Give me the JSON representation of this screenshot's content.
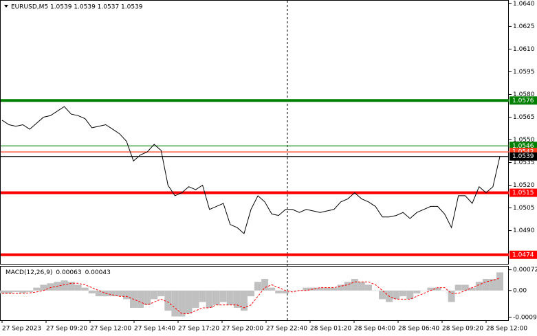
{
  "chart_data": [
    {
      "type": "line",
      "title": "EURUSD,M5  1.0539 1.0539 1.0537 1.0539",
      "color": "#000000",
      "values": [
        1.0563,
        1.056,
        1.0559,
        1.056,
        1.0557,
        1.0561,
        1.0565,
        1.0566,
        1.0569,
        1.0572,
        1.0567,
        1.0566,
        1.0564,
        1.0558,
        1.0559,
        1.056,
        1.0557,
        1.0554,
        1.0549,
        1.0536,
        1.054,
        1.0542,
        1.0547,
        1.0543,
        1.052,
        1.0513,
        1.0515,
        1.0519,
        1.0517,
        1.052,
        1.0504,
        1.0506,
        1.0508,
        1.0494,
        1.0492,
        1.0488,
        1.0504,
        1.0513,
        1.0509,
        1.0501,
        1.05,
        1.0504,
        1.0504,
        1.0502,
        1.0504,
        1.0503,
        1.0502,
        1.0503,
        1.0504,
        1.0509,
        1.0511,
        1.0515,
        1.0511,
        1.0509,
        1.0506,
        1.0499,
        1.0499,
        1.05,
        1.0502,
        1.0498,
        1.0502,
        1.0504,
        1.0506,
        1.0506,
        1.0501,
        1.0492,
        1.0513,
        1.0513,
        1.0508,
        1.0519,
        1.0515,
        1.0519,
        1.0539
      ],
      "ylim": [
        1.0468,
        1.0642
      ],
      "yticks": [
        {
          "value": 1.064,
          "label": "1.0640"
        },
        1.0625,
        {
          "value": 1.061,
          "label": "1.0610"
        },
        1.0595,
        {
          "value": 1.058,
          "label": "1.0580"
        },
        1.0565,
        {
          "value": 1.055,
          "label": "1.0550"
        },
        1.0535,
        {
          "value": 1.052,
          "label": "1.0520"
        },
        1.0505,
        {
          "value": 1.049,
          "label": "1.0490"
        }
      ],
      "levels": [
        {
          "value": 1.0576,
          "color": "#008000",
          "weight": "bold"
        },
        {
          "value": 1.0546,
          "color": "#008000",
          "weight": "thin"
        },
        {
          "value": 1.0542,
          "color": "#ff3c1e",
          "weight": "thin"
        },
        {
          "value": 1.0539,
          "color": "#000000",
          "weight": "thin"
        },
        {
          "value": 1.0515,
          "color": "#ff0000",
          "weight": "bold"
        },
        {
          "value": 1.0474,
          "color": "#ff0000",
          "weight": "bold"
        }
      ]
    },
    {
      "type": "macd",
      "name": "MACD(12,26,9)",
      "macd_value": 0.00063,
      "signal_value": 0.00043,
      "series": [
        {
          "color": "#c0c0c0",
          "values": [
            -0.0001,
            -0.0001,
            -5e-05,
            -8e-05,
            -5e-05,
            0.0001,
            0.0002,
            0.00025,
            0.0003,
            0.00035,
            0.0003,
            0.0002,
            0.0001,
            -0.0001,
            -0.0002,
            -0.0002,
            -0.0002,
            -0.0002,
            -0.0003,
            -0.0006,
            -0.0006,
            -0.0005,
            -0.0003,
            -0.0002,
            -0.0007,
            -0.0009,
            -0.0009,
            -0.0008,
            -0.0006,
            -0.0004,
            -0.0006,
            -0.0005,
            -0.0004,
            -0.0005,
            -0.0006,
            -0.0007,
            -0.0002,
            0.0003,
            0.0004,
            0.0001,
            -0.0001,
            -0.0001,
            0,
            0,
            0.0001,
            0.0001,
            0.0001,
            0.0001,
            0.0001,
            0.0002,
            0.0003,
            0.0004,
            0.0003,
            0.0002,
            0,
            -0.0003,
            -0.0004,
            -0.0003,
            -0.0002,
            -0.0003,
            -0.0001,
            0,
            0.0001,
            0.0001,
            0,
            -0.0004,
            0.0002,
            0.0002,
            0.0001,
            0.0003,
            0.0004,
            0.0004,
            0.00063
          ]
        },
        {
          "color": "#ff0000",
          "style": "dashed",
          "values": [
            -0.0001,
            -0.0001,
            -0.0001,
            -0.0001,
            -8e-05,
            -5e-05,
            0,
            0.0001,
            0.00015,
            0.0002,
            0.00025,
            0.00025,
            0.0002,
            0.0001,
            0,
            -0.0001,
            -0.00015,
            -0.0002,
            -0.0002,
            -0.0003,
            -0.0004,
            -0.0005,
            -0.0004,
            -0.0003,
            -0.0004,
            -0.0006,
            -0.0008,
            -0.0008,
            -0.0007,
            -0.0006,
            -0.0006,
            -0.0005,
            -0.0005,
            -0.0005,
            -0.0005,
            -0.0006,
            -0.0005,
            -0.0002,
            0.0001,
            0.0002,
            0.0001,
            0,
            -5e-05,
            0,
            0,
            5e-05,
            0.0001,
            0.0001,
            0.0001,
            0.00015,
            0.0002,
            0.0003,
            0.0003,
            0.0003,
            0.0002,
            0,
            -0.0002,
            -0.0003,
            -0.0003,
            -0.0003,
            -0.0002,
            -0.0001,
            0,
            0.0001,
            0.0001,
            -0.0001,
            -0.0001,
            0,
            0.0001,
            0.0002,
            0.0003,
            0.00035,
            0.00043
          ]
        }
      ],
      "ylim": [
        -0.00103,
        0.00083
      ],
      "yticks": [
        0.00072,
        {
          "value": 0,
          "label": "0.00"
        },
        -0.00093
      ],
      "x_labels": [
        "27 Sep 2023",
        "27 Sep 09:20",
        "27 Sep 12:00",
        "27 Sep 14:40",
        "27 Sep 17:20",
        "27 Sep 20:00",
        "27 Sep 22:40",
        "28 Sep 01:20",
        "28 Sep 04:00",
        "28 Sep 06:40",
        "28 Sep 09:20",
        "28 Sep 12:00"
      ]
    }
  ]
}
